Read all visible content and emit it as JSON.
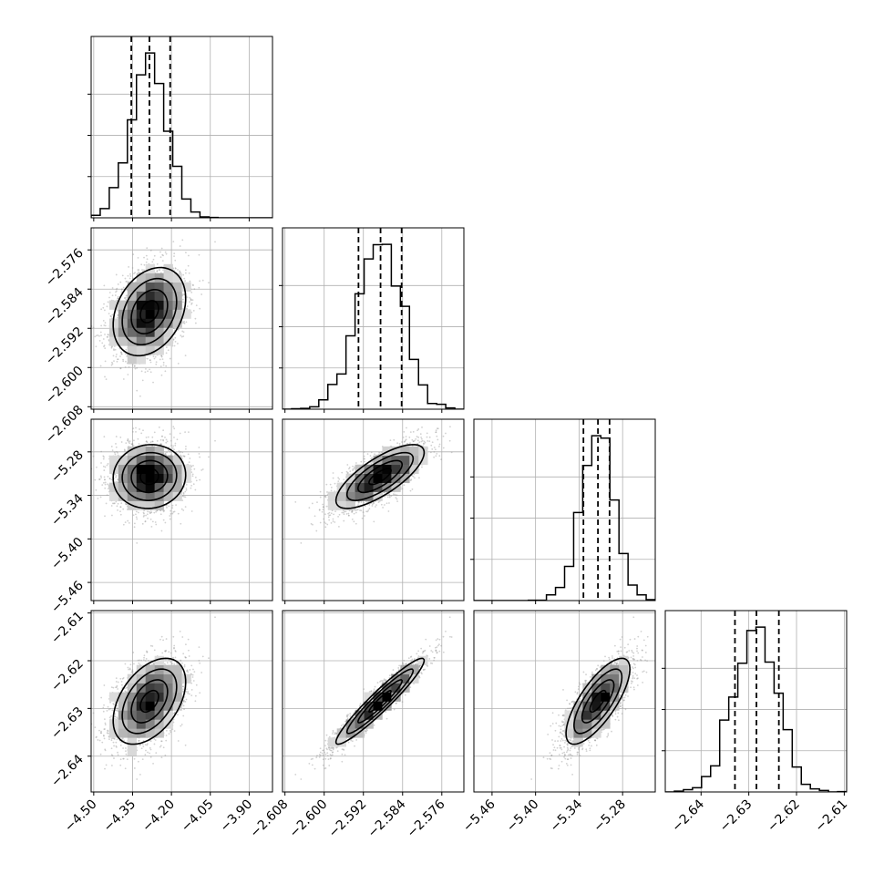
{
  "chart_data": {
    "type": "corner",
    "grid": true,
    "parameters": [
      {
        "range": [
          -4.51,
          -3.81
        ],
        "ticks": [
          "−4.50",
          "−4.35",
          "−4.20",
          "−4.05",
          "−3.90"
        ],
        "tick_values": [
          -4.5,
          -4.35,
          -4.2,
          -4.05,
          -3.9
        ],
        "mean": -4.285,
        "sd": 0.07,
        "quantiles": [
          -4.355,
          -4.285,
          -4.205
        ]
      },
      {
        "range": [
          -2.6085,
          -2.5715
        ],
        "ticks": [
          "−2.608",
          "−2.600",
          "−2.592",
          "−2.584",
          "−2.576"
        ],
        "tick_values": [
          -2.608,
          -2.6,
          -2.592,
          -2.584,
          -2.576
        ],
        "mean": -2.5886,
        "sd": 0.0045,
        "quantiles": [
          -2.593,
          -2.5885,
          -2.5842
        ]
      },
      {
        "range": [
          -5.485,
          -5.235
        ],
        "ticks": [
          "−5.46",
          "−5.40",
          "−5.34",
          "−5.28"
        ],
        "tick_values": [
          -5.46,
          -5.4,
          -5.34,
          -5.28
        ],
        "mean": -5.314,
        "sd": 0.022,
        "quantiles": [
          -5.334,
          -5.314,
          -5.298
        ]
      },
      {
        "range": [
          -2.6475,
          -2.6095
        ],
        "ticks": [
          "−2.64",
          "−2.63",
          "−2.62",
          "−2.61"
        ],
        "tick_values": [
          -2.64,
          -2.63,
          -2.62,
          -2.61
        ],
        "mean": -2.6285,
        "sd": 0.0045,
        "quantiles": [
          -2.6329,
          -2.6284,
          -2.6237
        ]
      }
    ],
    "correlations": [
      [
        1.0,
        0.3,
        0.05,
        0.45
      ],
      [
        0.3,
        1.0,
        0.75,
        0.95
      ],
      [
        0.05,
        0.75,
        1.0,
        0.75
      ],
      [
        0.45,
        0.95,
        0.75,
        1.0
      ]
    ],
    "colors": {
      "axis": "#000000",
      "grid": "#b0b0b0",
      "points": "#9a9a9a",
      "contour": "#000000",
      "hist": "#000000",
      "density": "#000000"
    }
  }
}
